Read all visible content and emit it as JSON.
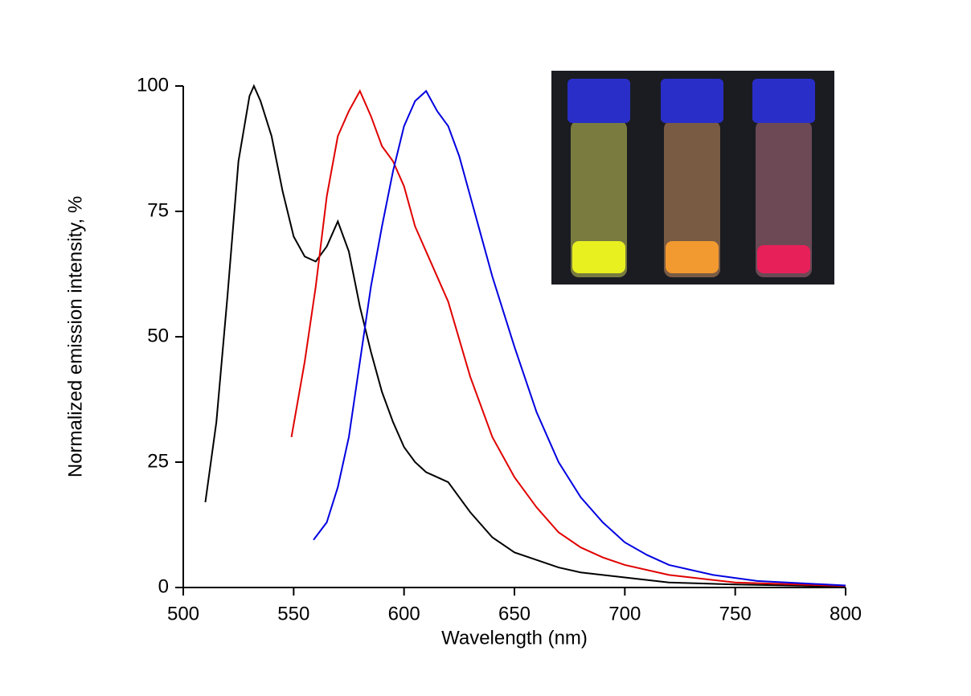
{
  "chart_data": {
    "type": "line",
    "x_label": "Wavelength (nm)",
    "y_label": "Normalized emission intensity, %",
    "xlim": [
      500,
      800
    ],
    "ylim": [
      0,
      100
    ],
    "xticks": [
      500,
      550,
      600,
      650,
      700,
      750,
      800
    ],
    "yticks": [
      0,
      25,
      50,
      75,
      100
    ],
    "series": [
      {
        "color": "#000000",
        "x": [
          510,
          515,
          520,
          525,
          530,
          532,
          535,
          540,
          545,
          550,
          555,
          560,
          565,
          570,
          575,
          580,
          585,
          590,
          595,
          600,
          605,
          610,
          615,
          620,
          625,
          630,
          640,
          650,
          660,
          670,
          680,
          700,
          720,
          750,
          800
        ],
        "values": [
          17,
          33,
          58,
          85,
          98,
          100,
          97,
          90,
          79,
          70,
          66,
          65,
          68,
          73,
          67,
          56,
          47,
          39,
          33,
          28,
          25,
          23,
          22,
          21,
          18,
          15,
          10,
          7,
          5.5,
          4,
          3,
          2,
          1,
          0.6,
          0.2
        ]
      },
      {
        "color": "#e00000",
        "x": [
          549,
          555,
          560,
          565,
          570,
          575,
          580,
          585,
          590,
          595,
          600,
          605,
          610,
          620,
          630,
          640,
          650,
          660,
          670,
          680,
          690,
          700,
          720,
          750,
          800
        ],
        "values": [
          30,
          45,
          60,
          78,
          90,
          95,
          99,
          94,
          88,
          85,
          80,
          72,
          67,
          57,
          42,
          30,
          22,
          16,
          11,
          8,
          6,
          4.5,
          2.5,
          1,
          0.3
        ]
      },
      {
        "color": "#0000e0",
        "x": [
          559,
          565,
          570,
          575,
          580,
          585,
          590,
          595,
          600,
          605,
          610,
          615,
          620,
          625,
          630,
          635,
          640,
          645,
          650,
          660,
          670,
          680,
          690,
          700,
          710,
          720,
          740,
          760,
          800
        ],
        "values": [
          9.5,
          13,
          20,
          30,
          45,
          60,
          72,
          83,
          92,
          97,
          99,
          95,
          92,
          86,
          78,
          70,
          62,
          55,
          48,
          35,
          25,
          18,
          13,
          9,
          6.5,
          4.5,
          2.5,
          1.3,
          0.4
        ]
      }
    ]
  }
}
